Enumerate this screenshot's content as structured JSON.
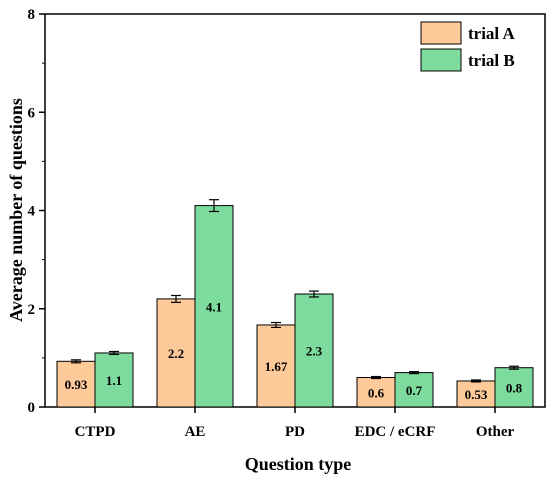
{
  "chart_data": {
    "type": "bar",
    "title": "",
    "xlabel": "Question type",
    "ylabel": "Average number of questions",
    "categories": [
      "CTPD",
      "AE",
      "PD",
      "EDC / eCRF",
      "Other"
    ],
    "series": [
      {
        "name": "trial A",
        "values": [
          0.93,
          2.2,
          1.67,
          0.6,
          0.53
        ],
        "labels": [
          "0.93",
          "2.2",
          "1.67",
          "0.6",
          "0.53"
        ],
        "errors": [
          0.03,
          0.07,
          0.05,
          0.02,
          0.02
        ],
        "color": "#FFCA99"
      },
      {
        "name": "trial B",
        "values": [
          1.1,
          4.1,
          2.3,
          0.7,
          0.8
        ],
        "labels": [
          "1.1",
          "4.1",
          "2.3",
          "0.7",
          "0.8"
        ],
        "errors": [
          0.03,
          0.12,
          0.06,
          0.02,
          0.03
        ],
        "color": "#7DDB9E"
      }
    ],
    "ylim": [
      0,
      8
    ],
    "yticks": [
      0,
      2,
      4,
      6,
      8
    ],
    "grid": false,
    "legend_position": "top-right"
  }
}
